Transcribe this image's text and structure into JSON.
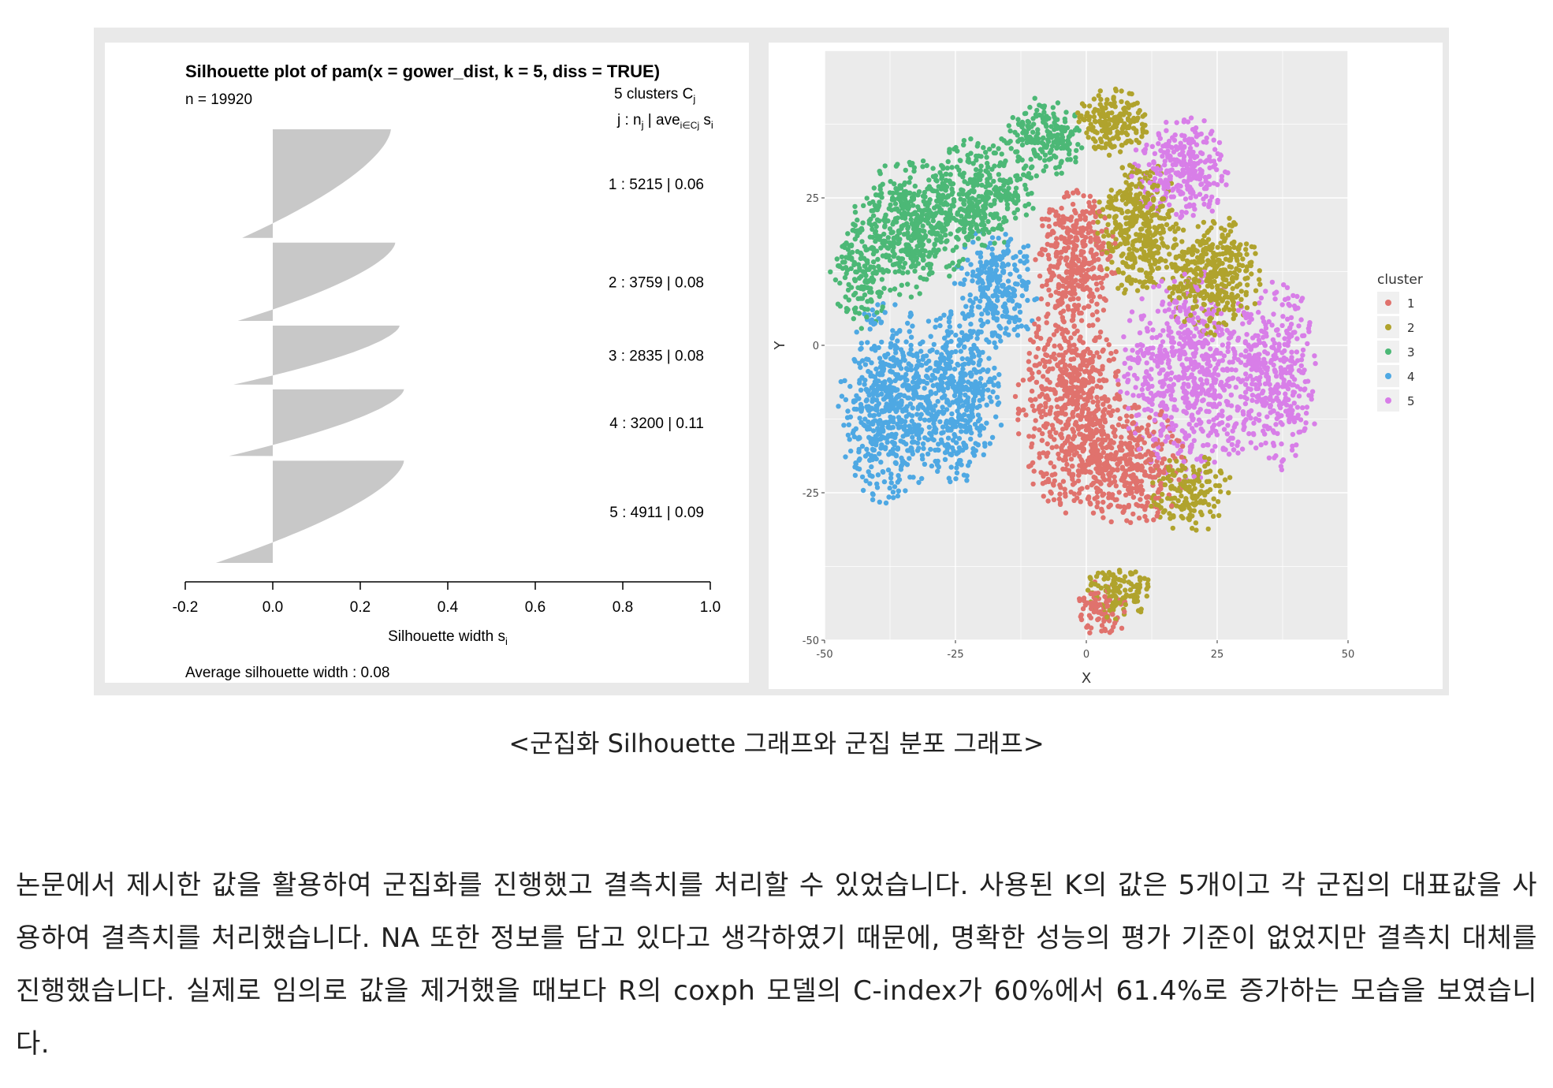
{
  "chart_data": [
    {
      "type": "bar",
      "subtype": "silhouette",
      "title": "Silhouette plot of pam(x = gower_dist, k = 5, diss = TRUE)",
      "n_label": "n = 19920",
      "header_line1": "5  clusters  C",
      "header_line1_sub": "j",
      "header_line2": "j :  n",
      "header_line2_sub": "j",
      "header_line2_rest": " | ave",
      "header_line2_sub2": "i∈Cj",
      "header_line2_end": " s",
      "header_line2_sub3": "i",
      "clusters": [
        {
          "j": 1,
          "n": 5215,
          "ave": 0.06,
          "label": "1 :   5215  |  0.06",
          "min": -0.07,
          "max": 0.27
        },
        {
          "j": 2,
          "n": 3759,
          "ave": 0.08,
          "label": "2 :   3759  |  0.08",
          "min": -0.08,
          "max": 0.28
        },
        {
          "j": 3,
          "n": 2835,
          "ave": 0.08,
          "label": "3 :   2835  |  0.08",
          "min": -0.09,
          "max": 0.29
        },
        {
          "j": 4,
          "n": 3200,
          "ave": 0.11,
          "label": "4 :   3200  |  0.11",
          "min": -0.1,
          "max": 0.3
        },
        {
          "j": 5,
          "n": 4911,
          "ave": 0.09,
          "label": "5 :   4911  |  0.09",
          "min": -0.13,
          "max": 0.3
        }
      ],
      "xlim": [
        -0.2,
        1.0
      ],
      "xticks": [
        "-0.2",
        "0.0",
        "0.2",
        "0.4",
        "0.6",
        "0.8",
        "1.0"
      ],
      "xlabel": "Silhouette width s",
      "xlabel_sub": "i",
      "avg_label": "Average silhouette width :  0.08",
      "bar_color": "#c8c8c8"
    },
    {
      "type": "scatter",
      "xlabel": "X",
      "ylabel": "Y",
      "xlim": [
        -50,
        50
      ],
      "ylim": [
        -50,
        50
      ],
      "xticks": [
        "-50",
        "-25",
        "0",
        "25",
        "50"
      ],
      "yticks": [
        "25",
        "0",
        "-25",
        "-50"
      ],
      "grid": true,
      "legend_title": "cluster",
      "legend_position": "right",
      "series": [
        {
          "name": "1",
          "color": "#e0726d"
        },
        {
          "name": "2",
          "color": "#b0a32d"
        },
        {
          "name": "3",
          "color": "#4cb876"
        },
        {
          "name": "4",
          "color": "#4ea8e3"
        },
        {
          "name": "5",
          "color": "#d87ee8"
        }
      ],
      "regions": [
        {
          "cluster": 3,
          "cx": -33,
          "cy": 20,
          "rx": 10,
          "ry": 10,
          "n": 480
        },
        {
          "cluster": 3,
          "cx": -20,
          "cy": 26,
          "rx": 9,
          "ry": 8,
          "n": 320
        },
        {
          "cluster": 3,
          "cx": -8,
          "cy": 35,
          "rx": 7,
          "ry": 6,
          "n": 200
        },
        {
          "cluster": 3,
          "cx": -43,
          "cy": 12,
          "rx": 5,
          "ry": 8,
          "n": 150
        },
        {
          "cluster": 4,
          "cx": -38,
          "cy": -10,
          "rx": 8,
          "ry": 15,
          "n": 560
        },
        {
          "cluster": 4,
          "cx": -25,
          "cy": -8,
          "rx": 8,
          "ry": 13,
          "n": 480
        },
        {
          "cluster": 4,
          "cx": -17,
          "cy": 10,
          "rx": 7,
          "ry": 9,
          "n": 260
        },
        {
          "cluster": 1,
          "cx": -2,
          "cy": 15,
          "rx": 7,
          "ry": 10,
          "n": 360
        },
        {
          "cluster": 1,
          "cx": -3,
          "cy": -10,
          "rx": 9,
          "ry": 16,
          "n": 620
        },
        {
          "cluster": 1,
          "cx": 8,
          "cy": -20,
          "rx": 10,
          "ry": 9,
          "n": 400
        },
        {
          "cluster": 1,
          "cx": 3,
          "cy": -45,
          "rx": 4,
          "ry": 5,
          "n": 90
        },
        {
          "cluster": 2,
          "cx": 10,
          "cy": 20,
          "rx": 7,
          "ry": 10,
          "n": 380
        },
        {
          "cluster": 2,
          "cx": 24,
          "cy": 12,
          "rx": 8,
          "ry": 9,
          "n": 380
        },
        {
          "cluster": 2,
          "cx": 5,
          "cy": 38,
          "rx": 6,
          "ry": 5,
          "n": 180
        },
        {
          "cluster": 2,
          "cx": 6,
          "cy": -42,
          "rx": 6,
          "ry": 4,
          "n": 120
        },
        {
          "cluster": 2,
          "cx": 20,
          "cy": -25,
          "rx": 7,
          "ry": 6,
          "n": 160
        },
        {
          "cluster": 5,
          "cx": 18,
          "cy": 30,
          "rx": 8,
          "ry": 8,
          "n": 300
        },
        {
          "cluster": 5,
          "cx": 20,
          "cy": -5,
          "rx": 12,
          "ry": 15,
          "n": 700
        },
        {
          "cluster": 5,
          "cx": 37,
          "cy": -5,
          "rx": 7,
          "ry": 14,
          "n": 340
        }
      ]
    }
  ],
  "caption": "<군집화 Silhouette 그래프와 군집 분포 그래프>",
  "paragraph": "논문에서 제시한 값을 활용하여 군집화를 진행했고 결측치를 처리할 수 있었습니다. 사용된 K의 값은 5개이고 각 군집의 대표값을 사용하여 결측치를 처리했습니다. NA 또한 정보를 담고 있다고 생각하였기 때문에, 명확한 성능의 평가 기준이 없었지만 결측치 대체를 진행했습니다. 실제로 임의로 값을 제거했을 때보다 R의 coxph 모델의 C-index가 60%에서 61.4%로 증가하는 모습을 보였습니다."
}
